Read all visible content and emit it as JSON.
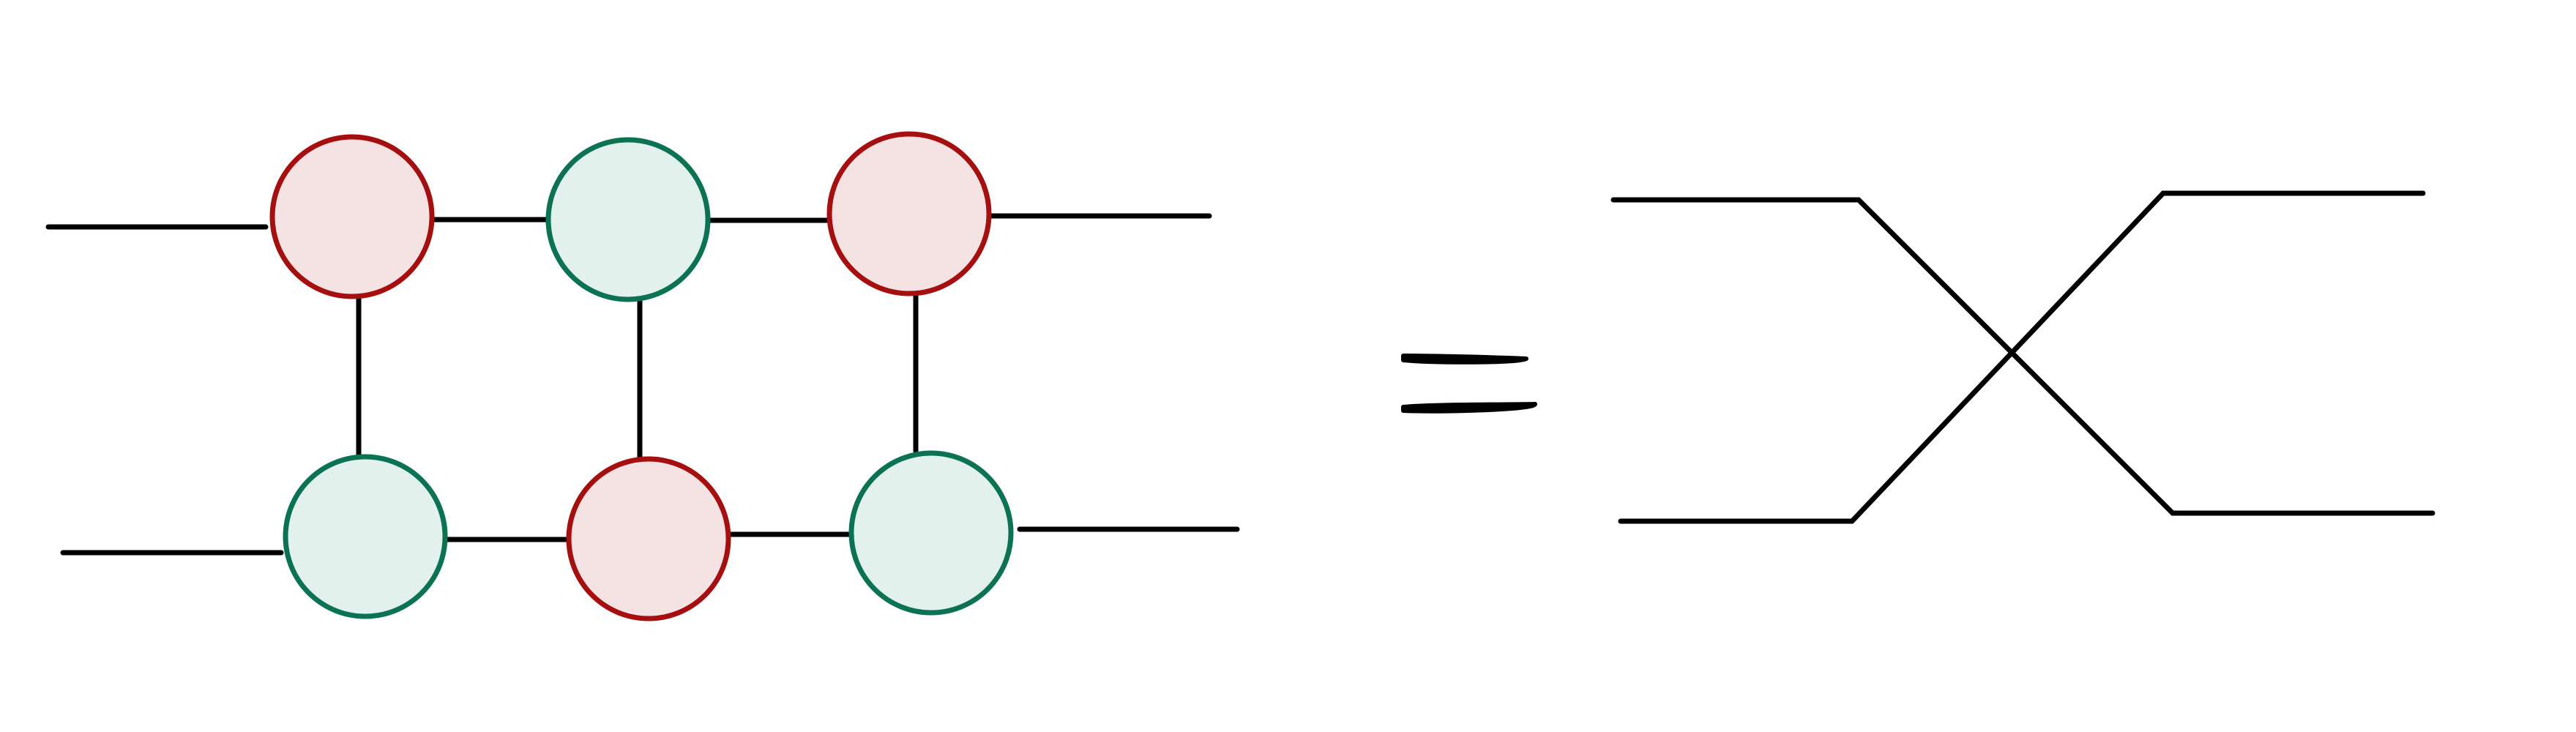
{
  "diagram": {
    "kind": "zx-diagram-identity",
    "node_colors": {
      "red_stroke": "#A50F0F",
      "red_fill": "#F5E3E3",
      "green_stroke": "#0B7354",
      "green_fill": "#E3F1EC",
      "wire": "#000000"
    },
    "left_side": {
      "top_row": [
        "red",
        "green",
        "red"
      ],
      "bottom_row": [
        "green",
        "red",
        "green"
      ]
    },
    "relation_symbol": "=",
    "right_side": {
      "shape": "crossing-wires"
    }
  }
}
